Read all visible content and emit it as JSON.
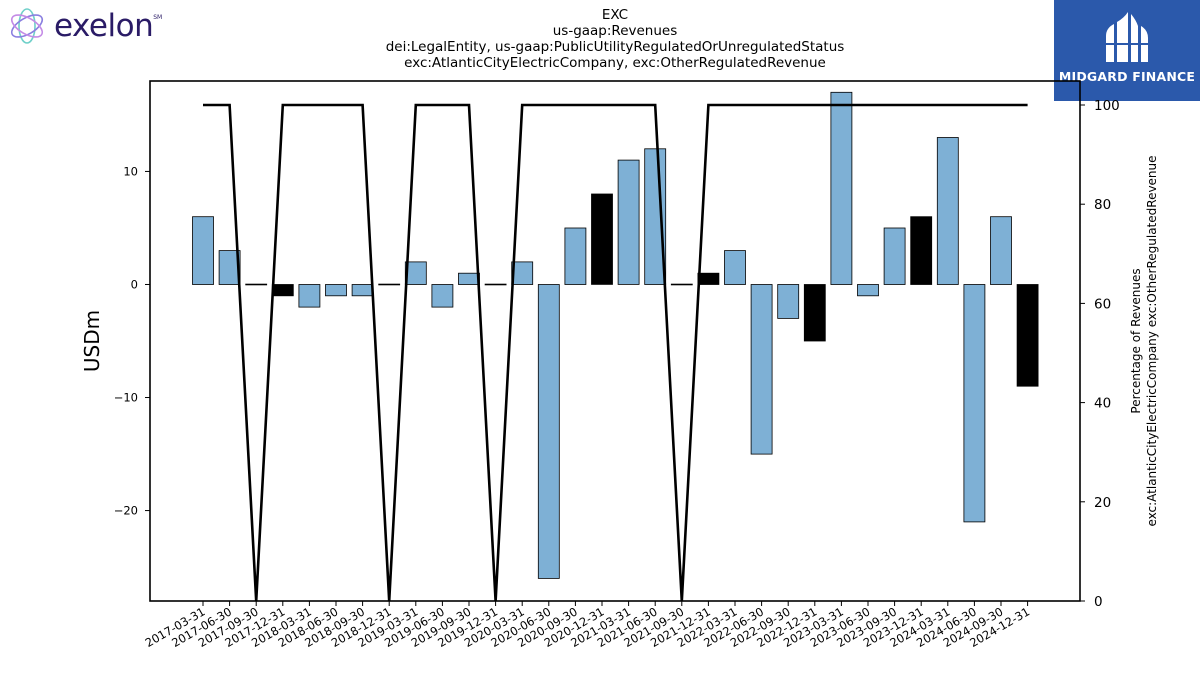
{
  "header": {
    "title_lines": [
      "EXC",
      "us-gaap:Revenues",
      "dei:LegalEntity, us-gaap:PublicUtilityRegulatedOrUnregulatedStatus",
      "exc:AtlanticCityElectricCompany, exc:OtherRegulatedRevenue"
    ]
  },
  "logos": {
    "left_text": "exelon",
    "left_mark": "SM",
    "right_text": "MIDGARD FINANCE",
    "right_bg": "#2b59ab"
  },
  "chart_data": {
    "type": "bar",
    "categories": [
      "2017-03-31",
      "2017-06-30",
      "2017-09-30",
      "2017-12-31",
      "2018-03-31",
      "2018-06-30",
      "2018-09-30",
      "2018-12-31",
      "2019-03-31",
      "2019-06-30",
      "2019-09-30",
      "2019-12-31",
      "2020-03-31",
      "2020-06-30",
      "2020-09-30",
      "2020-12-31",
      "2021-03-31",
      "2021-06-30",
      "2021-09-30",
      "2021-12-31",
      "2022-03-31",
      "2022-06-30",
      "2022-09-30",
      "2022-12-31",
      "2023-03-31",
      "2023-06-30",
      "2023-09-30",
      "2023-12-31",
      "2024-03-31",
      "2024-06-30",
      "2024-09-30",
      "2024-12-31"
    ],
    "values": [
      6,
      3,
      0,
      -1,
      -2,
      -1,
      -1,
      0,
      2,
      -2,
      1,
      0,
      2,
      -26,
      5,
      8,
      11,
      12,
      0,
      1,
      3,
      -15,
      -3,
      -5,
      17,
      -1,
      5,
      6,
      13,
      -21,
      6,
      -9
    ],
    "highlight": [
      false,
      false,
      false,
      true,
      false,
      false,
      false,
      false,
      false,
      false,
      false,
      false,
      false,
      false,
      false,
      true,
      false,
      false,
      false,
      true,
      false,
      false,
      false,
      true,
      false,
      false,
      false,
      true,
      false,
      false,
      false,
      true
    ],
    "percent_values": [
      100,
      100,
      0,
      100,
      100,
      100,
      100,
      0,
      100,
      100,
      100,
      0,
      100,
      100,
      100,
      100,
      100,
      100,
      0,
      100,
      100,
      100,
      100,
      100,
      100,
      100,
      100,
      100,
      100,
      100,
      100,
      100
    ],
    "ylabel": "USDm",
    "y2label_lines": [
      "Percentage of Revenues",
      "exc:AtlanticCityElectricCompany exc:OtherRegulatedRevenue"
    ],
    "ylim": [
      -28,
      18
    ],
    "y2lim": [
      0,
      100
    ],
    "yticks": [
      -20,
      -10,
      0,
      10
    ],
    "y2ticks": [
      0,
      20,
      40,
      60,
      80,
      100
    ],
    "colors": {
      "bar": "#7eb0d5",
      "bar_highlight": "#000000",
      "line": "#000000"
    }
  }
}
